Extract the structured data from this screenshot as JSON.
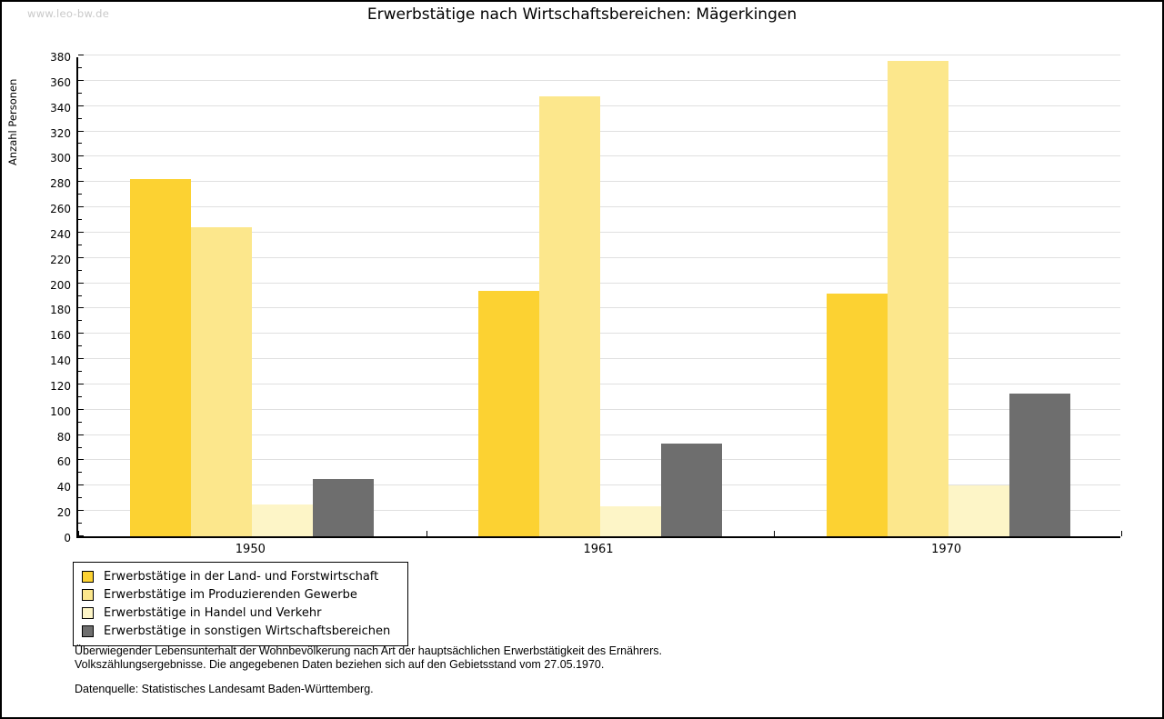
{
  "page": {
    "watermark": "www.leo-bw.de"
  },
  "chart_data": {
    "type": "bar",
    "title": "Erwerbstätige nach Wirtschaftsbereichen: Mägerkingen",
    "ylabel": "Anzahl Personen",
    "xlabel": "",
    "categories": [
      "1950",
      "1961",
      "1970"
    ],
    "series": [
      {
        "name": "Erwerbstätige in der Land- und Forstwirtschaft",
        "color": "#FCD232",
        "values": [
          282,
          194,
          192
        ]
      },
      {
        "name": "Erwerbstätige im Produzierenden Gewerbe",
        "color": "#FCE78C",
        "values": [
          244,
          348,
          376
        ]
      },
      {
        "name": "Erwerbstätige in Handel und Verkehr",
        "color": "#FDF5C7",
        "values": [
          25,
          24,
          40
        ]
      },
      {
        "name": "Erwerbstätige in sonstigen Wirtschaftsbereichen",
        "color": "#6E6E6E",
        "values": [
          45,
          73,
          113
        ]
      }
    ],
    "ylim": [
      0,
      380
    ],
    "ytick_step": 20,
    "ytick_minor_step": 10,
    "grid": true,
    "gridline_color": "#e0e0e0",
    "legend_position": "bottom-left"
  },
  "footer": {
    "line1": "Überwiegender Lebensunterhalt der Wohnbevölkerung nach Art der hauptsächlichen Erwerbstätigkeit des Ernährers.",
    "line2": "Volkszählungsergebnisse. Die angegebenen Daten beziehen sich auf den Gebietsstand vom 27.05.1970.",
    "source": "Datenquelle: Statistisches Landesamt Baden-Württemberg."
  }
}
